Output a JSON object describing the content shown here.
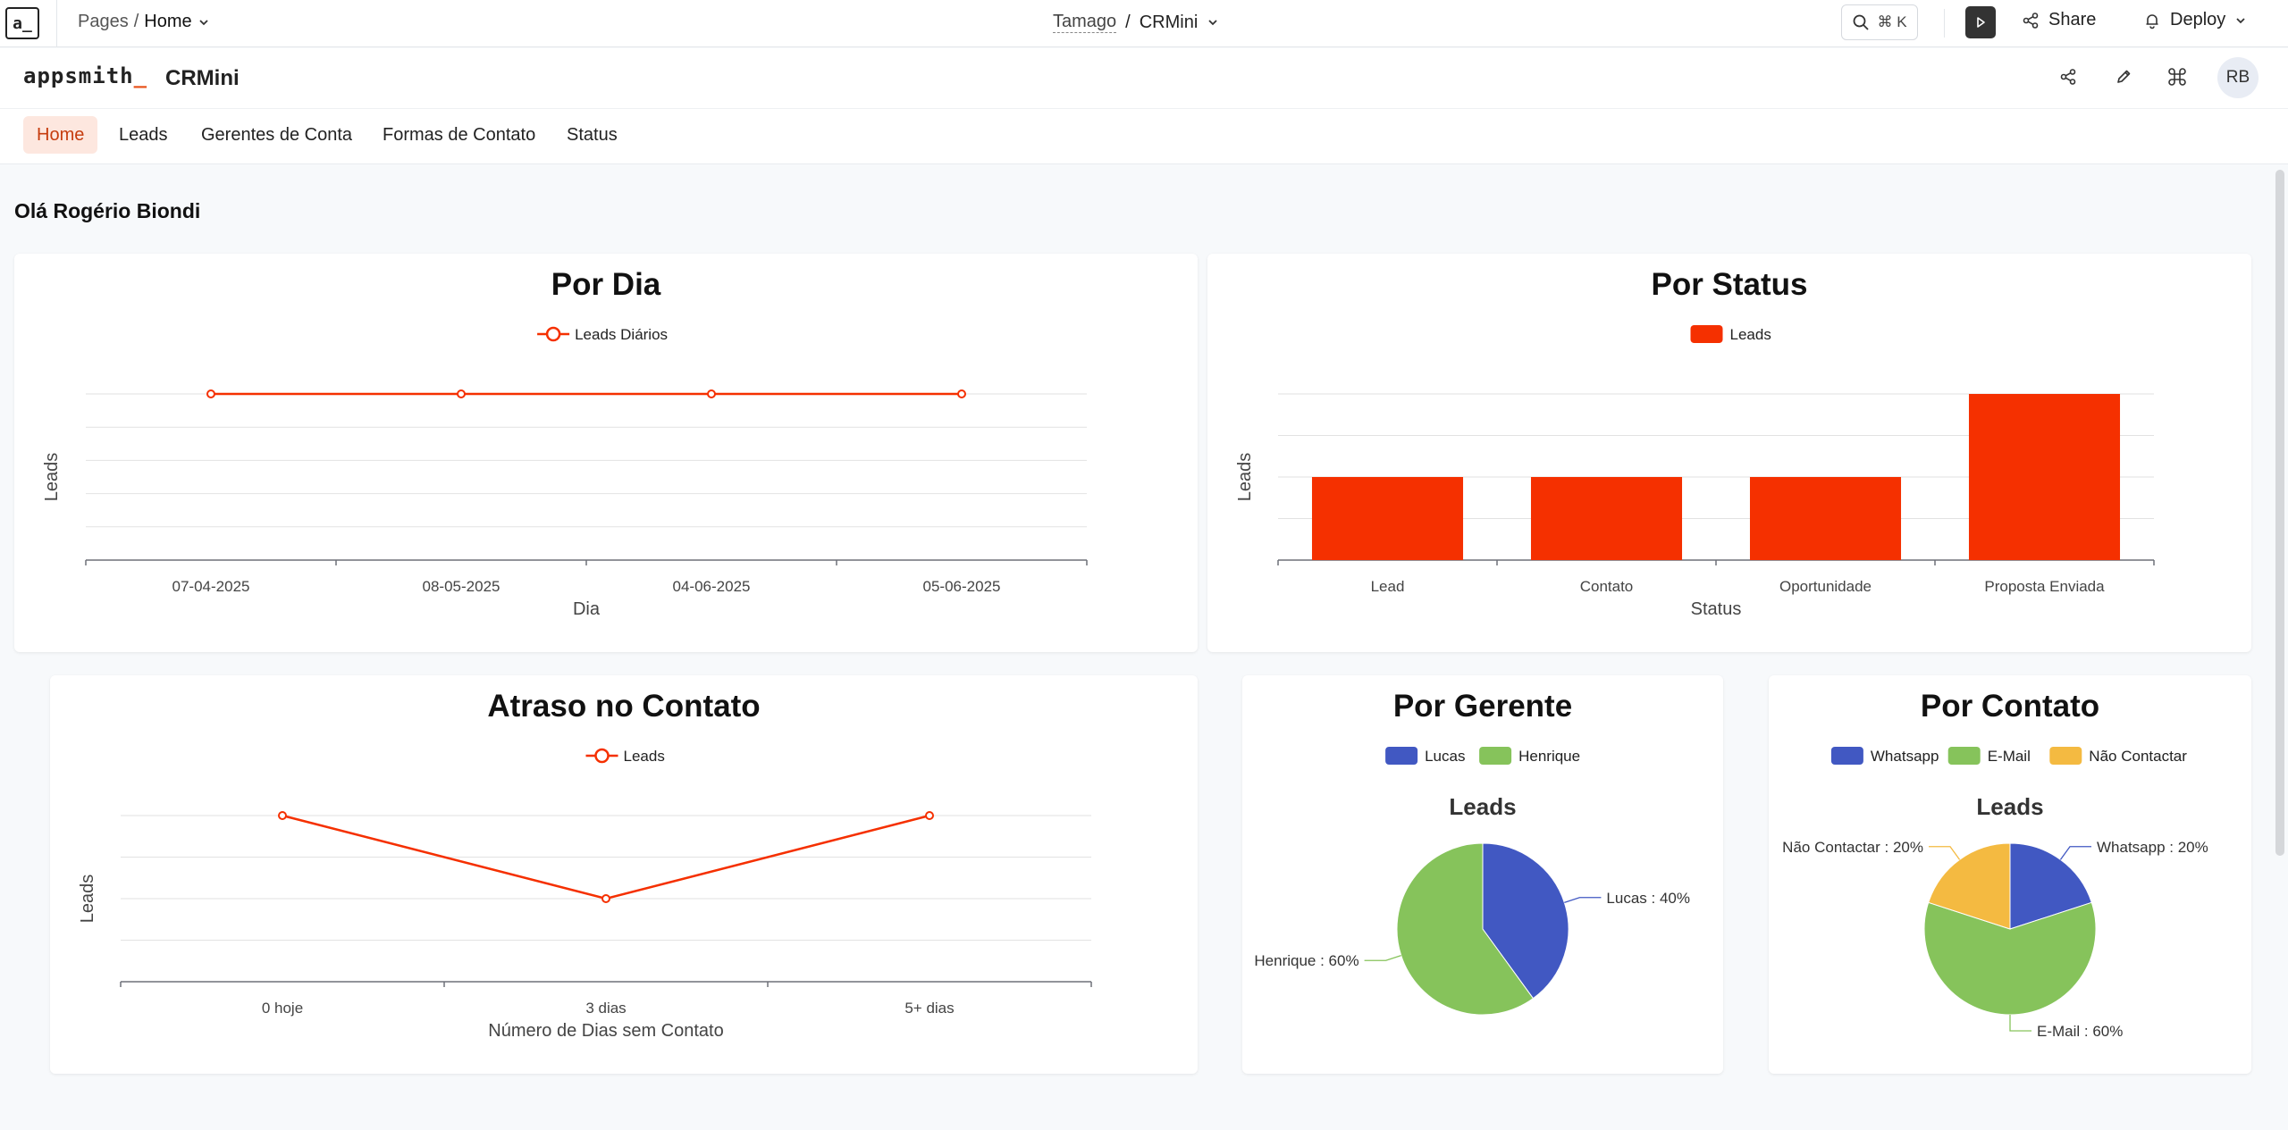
{
  "topbar": {
    "logo": "a_",
    "breadcrumb_root": "Pages",
    "breadcrumb_sep": "/",
    "breadcrumb_current": "Home",
    "workspace": "Tamago",
    "title_sep": "/",
    "app": "CRMini",
    "search_shortcut": "⌘ K",
    "share_label": "Share",
    "deploy_label": "Deploy"
  },
  "appbar": {
    "logo_text": "appsmith",
    "app_name": "CRMini",
    "avatar_initials": "RB"
  },
  "nav": {
    "items": [
      {
        "label": "Home",
        "active": true
      },
      {
        "label": "Leads",
        "active": false
      },
      {
        "label": "Gerentes de Conta",
        "active": false
      },
      {
        "label": "Formas de Contato",
        "active": false
      },
      {
        "label": "Status",
        "active": false
      }
    ]
  },
  "greeting": "Olá Rogério Biondi",
  "colors": {
    "accent": "#f53000",
    "blue": "#4158c2",
    "green": "#86c35b",
    "yellow": "#f4ba41"
  },
  "chart_data": [
    {
      "id": "por-dia",
      "type": "line",
      "title": "Por Dia",
      "series": [
        {
          "name": "Leads Diários",
          "values": [
            1,
            1,
            1,
            1
          ]
        }
      ],
      "categories": [
        "07-04-2025",
        "08-05-2025",
        "04-06-2025",
        "05-06-2025"
      ],
      "xlabel": "Dia",
      "ylabel": "Leads",
      "ylim": [
        0,
        1
      ],
      "grid": true,
      "legend": "top"
    },
    {
      "id": "por-status",
      "type": "bar",
      "title": "Por Status",
      "series": [
        {
          "name": "Leads",
          "values": [
            1,
            1,
            1,
            2
          ]
        }
      ],
      "categories": [
        "Lead",
        "Contato",
        "Oportunidade",
        "Proposta Enviada"
      ],
      "xlabel": "Status",
      "ylabel": "Leads",
      "ylim": [
        0,
        2
      ],
      "grid": true,
      "legend": "top"
    },
    {
      "id": "atraso",
      "type": "line",
      "title": "Atraso no Contato",
      "series": [
        {
          "name": "Leads",
          "values": [
            2,
            1,
            2
          ]
        }
      ],
      "categories": [
        "0 hoje",
        "3 dias",
        "5+ dias"
      ],
      "xlabel": "Número de Dias sem Contato",
      "ylabel": "Leads",
      "ylim": [
        0,
        2
      ],
      "grid": true,
      "legend": "top"
    },
    {
      "id": "por-gerente",
      "type": "pie",
      "title": "Por Gerente",
      "subtitle": "Leads",
      "slices": [
        {
          "name": "Lucas",
          "value": 40,
          "label": "Lucas : 40%"
        },
        {
          "name": "Henrique",
          "value": 60,
          "label": "Henrique : 60%"
        }
      ],
      "legend": "top"
    },
    {
      "id": "por-contato",
      "type": "pie",
      "title": "Por Contato",
      "subtitle": "Leads",
      "slices": [
        {
          "name": "Whatsapp",
          "value": 20,
          "label": "Whatsapp : 20%"
        },
        {
          "name": "E-Mail",
          "value": 60,
          "label": "E-Mail : 60%"
        },
        {
          "name": "Não Contactar",
          "value": 20,
          "label": "Não Contactar : 20%"
        }
      ],
      "legend": "top"
    }
  ]
}
